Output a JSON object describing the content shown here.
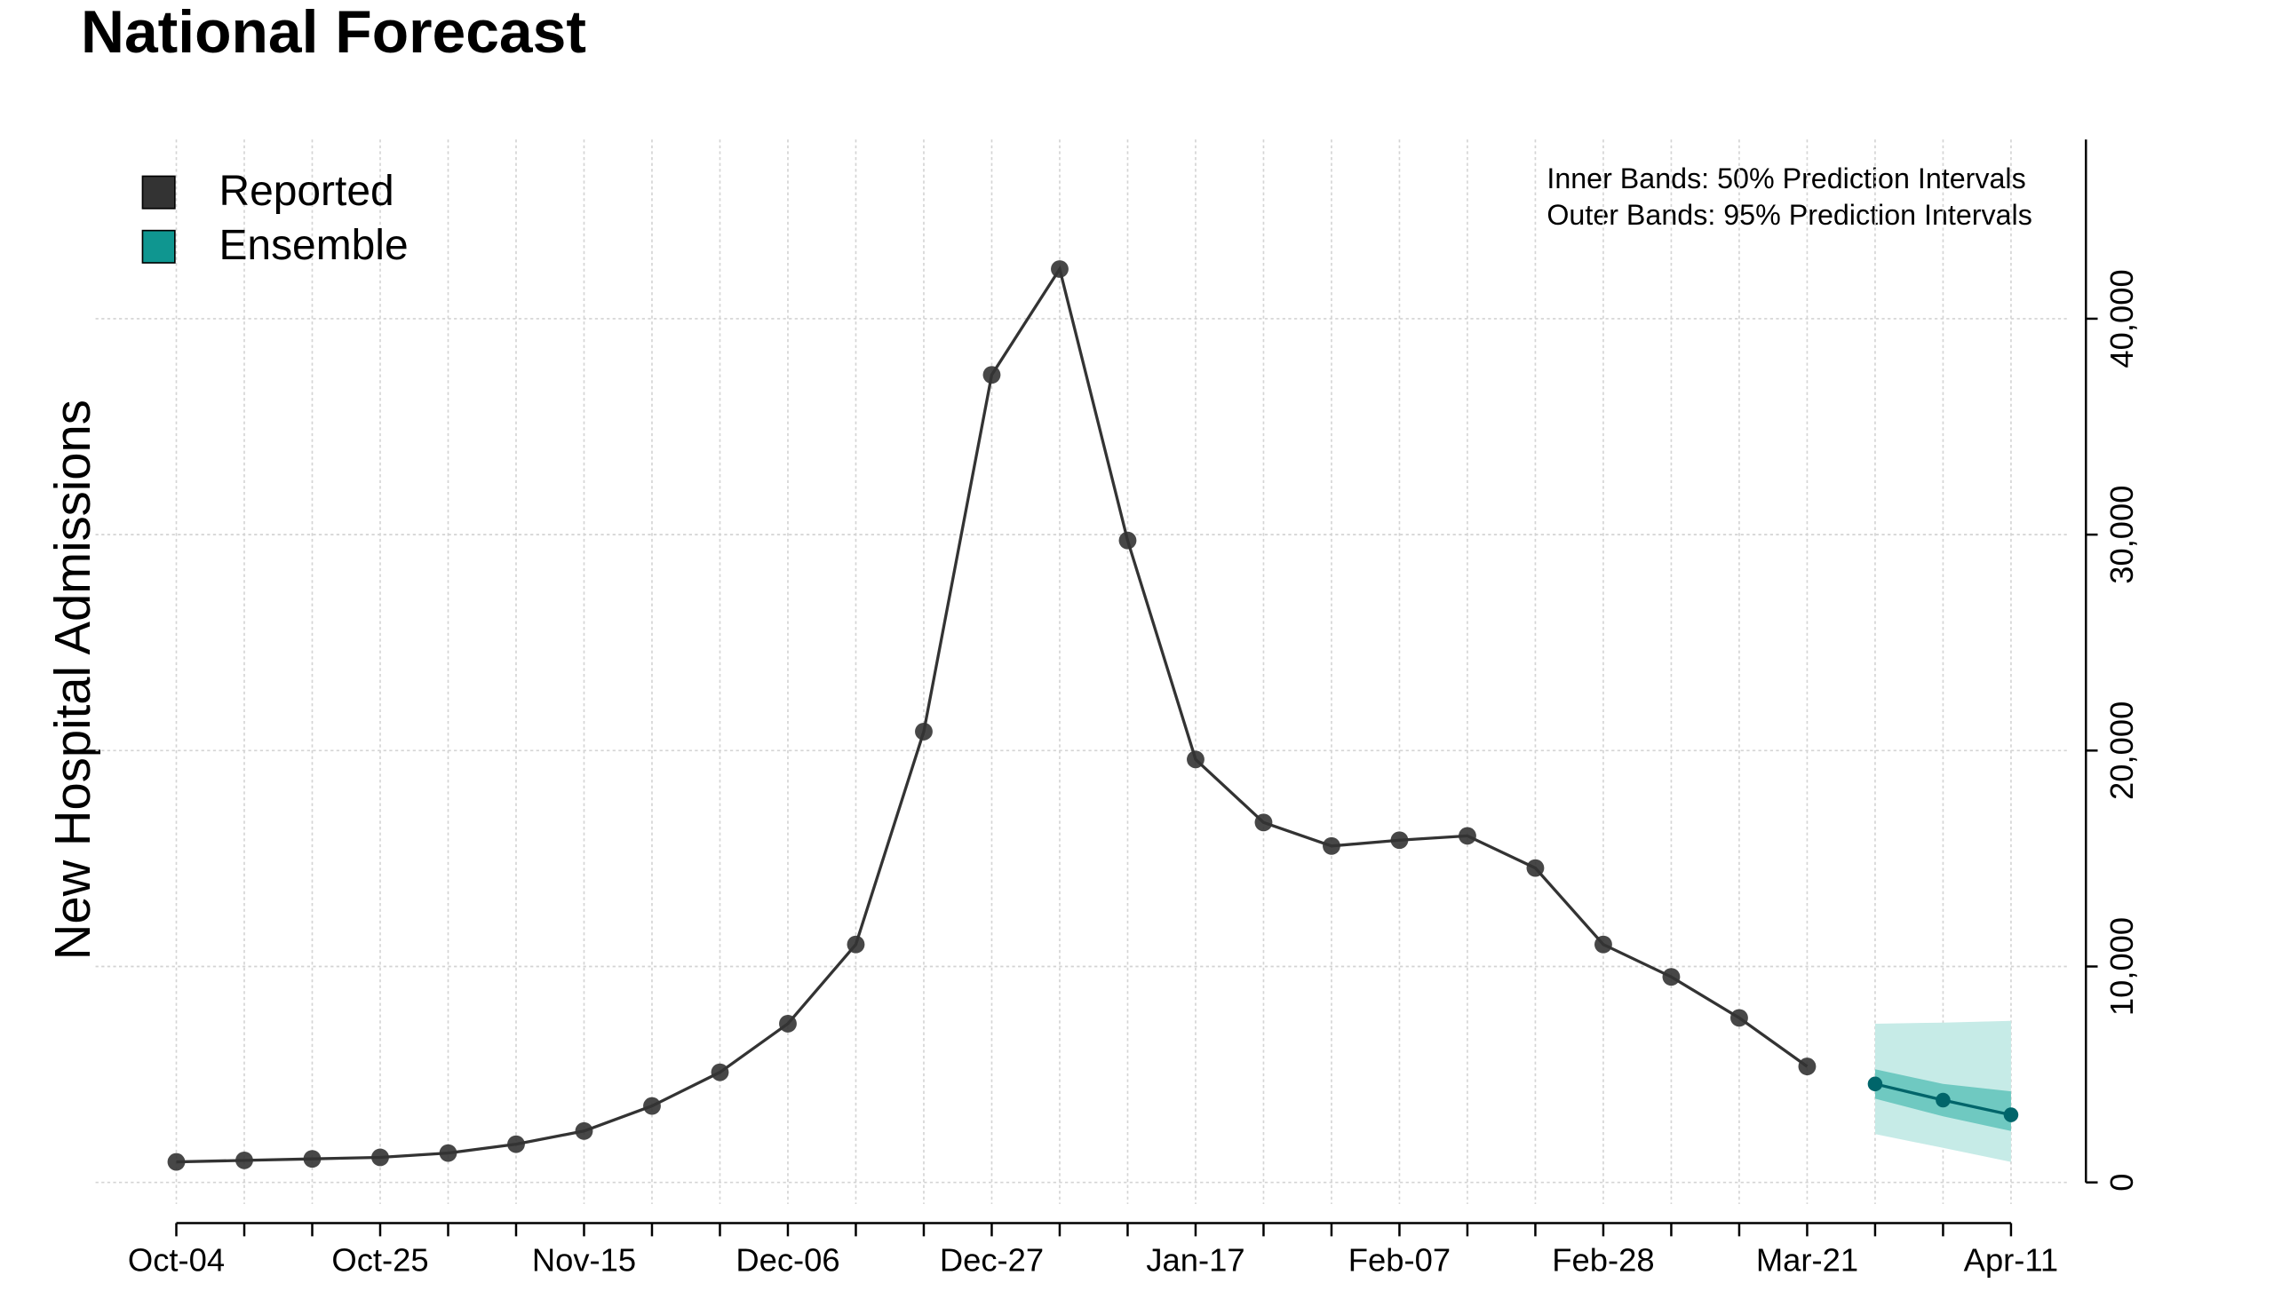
{
  "chart_data": {
    "type": "line",
    "title": "National Forecast",
    "y_label": "New Hospital Admissions",
    "annotations": [
      "Inner Bands: 50% Prediction Intervals",
      "Outer Bands: 95% Prediction Intervals"
    ],
    "categories": [
      "Oct-04",
      null,
      null,
      "Oct-25",
      null,
      null,
      "Nov-15",
      null,
      null,
      "Dec-06",
      null,
      null,
      "Dec-27",
      null,
      null,
      "Jan-17",
      null,
      null,
      "Feb-07",
      null,
      null,
      "Feb-28",
      null,
      null,
      "Mar-21",
      null,
      null,
      "Apr-11"
    ],
    "series": [
      {
        "name": "Reported",
        "color": "#333333",
        "values": [
          950,
          1020,
          1090,
          1160,
          1360,
          1770,
          2380,
          3540,
          5100,
          7350,
          11020,
          20880,
          37400,
          42300,
          29730,
          19590,
          16670,
          15580,
          15850,
          16050,
          14560,
          11020,
          9520,
          7620,
          5370,
          null,
          null,
          null
        ]
      },
      {
        "name": "Ensemble",
        "color": "#0f9690",
        "line_color": "#00656a",
        "band_50_color": "#6fc9c1",
        "band_95_color": "#c6ebe7",
        "values": [
          null,
          null,
          null,
          null,
          null,
          null,
          null,
          null,
          null,
          null,
          null,
          null,
          null,
          null,
          null,
          null,
          null,
          null,
          null,
          null,
          null,
          null,
          null,
          null,
          null,
          4560,
          3810,
          3130
        ],
        "lower_50": [
          null,
          null,
          null,
          null,
          null,
          null,
          null,
          null,
          null,
          null,
          null,
          null,
          null,
          null,
          null,
          null,
          null,
          null,
          null,
          null,
          null,
          null,
          null,
          null,
          null,
          3880,
          3060,
          2380
        ],
        "upper_50": [
          null,
          null,
          null,
          null,
          null,
          null,
          null,
          null,
          null,
          null,
          null,
          null,
          null,
          null,
          null,
          null,
          null,
          null,
          null,
          null,
          null,
          null,
          null,
          null,
          null,
          5240,
          4560,
          4220
        ],
        "lower_95": [
          null,
          null,
          null,
          null,
          null,
          null,
          null,
          null,
          null,
          null,
          null,
          null,
          null,
          null,
          null,
          null,
          null,
          null,
          null,
          null,
          null,
          null,
          null,
          null,
          null,
          2240,
          1600,
          950
        ],
        "upper_95": [
          null,
          null,
          null,
          null,
          null,
          null,
          null,
          null,
          null,
          null,
          null,
          null,
          null,
          null,
          null,
          null,
          null,
          null,
          null,
          null,
          null,
          null,
          null,
          null,
          null,
          7350,
          7400,
          7480
        ]
      }
    ],
    "ylim": [
      -1000,
      48300
    ],
    "yticks": [
      0,
      {
        "value": 10000,
        "label": "10,000"
      },
      {
        "value": 20000,
        "label": "20,000"
      },
      {
        "value": 30000,
        "label": "30,000"
      },
      {
        "value": 40000,
        "label": "40,000"
      }
    ],
    "grid": true,
    "legend": "upper left"
  }
}
